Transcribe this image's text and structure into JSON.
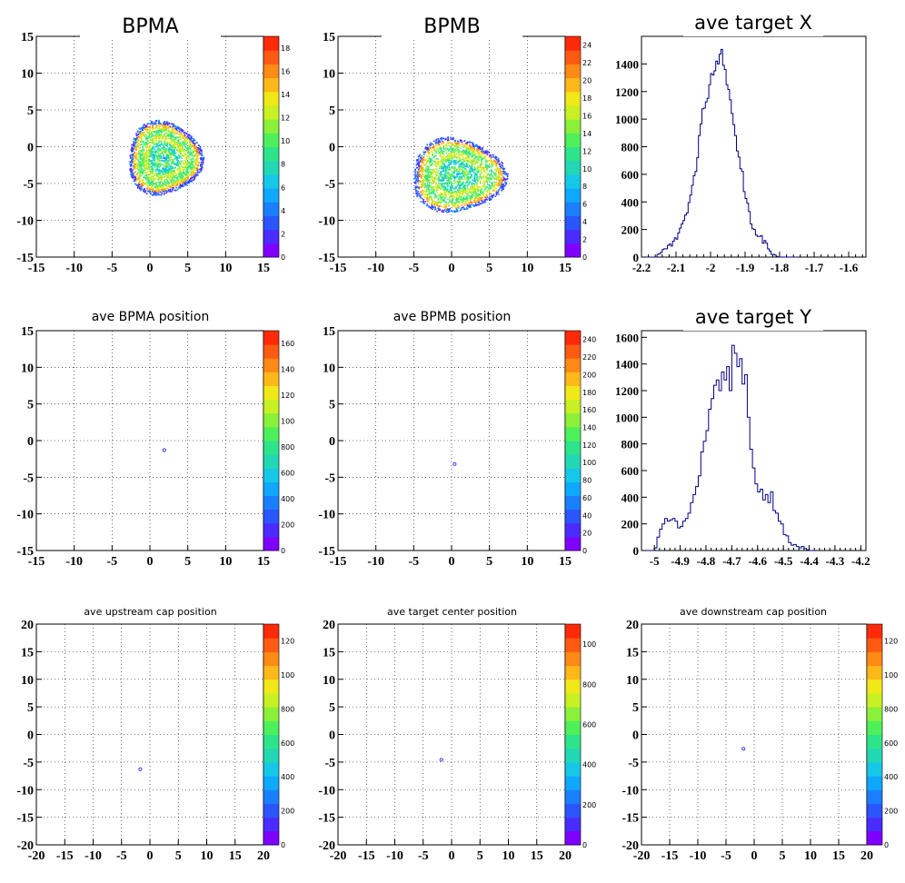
{
  "chart_data": [
    {
      "type": "heatmap",
      "title": "BPMA",
      "xlim": [
        -15,
        15
      ],
      "ylim": [
        -15,
        15
      ],
      "xticks": [
        "-15",
        "-10",
        "-5",
        "0",
        "5",
        "10",
        "15"
      ],
      "yticks": [
        "-15",
        "-10",
        "-5",
        "0",
        "5",
        "10",
        "15"
      ],
      "grid": true,
      "z_range": [
        0,
        18
      ],
      "palette_labels": [
        "0",
        "2",
        "4",
        "6",
        "8",
        "10",
        "12",
        "14",
        "16",
        "18"
      ],
      "distribution": {
        "kind": "ring",
        "center": [
          1.8,
          -1.5
        ],
        "radius_x": 4.9,
        "radius_y": 5.0
      }
    },
    {
      "type": "heatmap",
      "title": "BPMB",
      "xlim": [
        -15,
        15
      ],
      "ylim": [
        -15,
        15
      ],
      "xticks": [
        "-15",
        "-10",
        "-5",
        "0",
        "5",
        "10",
        "15"
      ],
      "yticks": [
        "-15",
        "-10",
        "-5",
        "0",
        "5",
        "10",
        "15"
      ],
      "grid": true,
      "z_range": [
        0,
        24
      ],
      "palette_labels": [
        "0",
        "2",
        "4",
        "6",
        "8",
        "10",
        "12",
        "14",
        "16",
        "18",
        "20",
        "22",
        "24"
      ],
      "distribution": {
        "kind": "ring",
        "center": [
          0.7,
          -3.8
        ],
        "radius_x": 6.2,
        "radius_y": 5.0
      }
    },
    {
      "type": "bar",
      "title": "ave target X",
      "xlim": [
        -2.2,
        -1.55
      ],
      "ylim": [
        0,
        1600
      ],
      "xticks": [
        "-2.2",
        "-2.1",
        "-2",
        "-1.9",
        "-1.8",
        "-1.7",
        "-1.6"
      ],
      "yticks": [
        "0",
        "200",
        "400",
        "600",
        "800",
        "1000",
        "1200",
        "1400"
      ],
      "grid": false,
      "bin_start": -2.2,
      "bin_width": 0.005,
      "values": [
        0,
        0,
        0,
        0,
        0,
        0,
        0,
        0,
        0,
        20,
        25,
        35,
        55,
        60,
        60,
        85,
        95,
        80,
        115,
        140,
        130,
        175,
        210,
        240,
        265,
        305,
        320,
        395,
        450,
        520,
        590,
        620,
        720,
        880,
        965,
        1075,
        1080,
        1125,
        1150,
        1250,
        1330,
        1320,
        1350,
        1420,
        1400,
        1470,
        1505,
        1390,
        1360,
        1250,
        1215,
        1140,
        1040,
        960,
        880,
        770,
        725,
        640,
        620,
        475,
        425,
        390,
        330,
        240,
        205,
        200,
        160,
        150,
        150,
        155,
        100,
        120,
        100,
        60,
        45,
        20,
        20,
        15,
        5,
        0,
        0,
        0,
        0,
        0,
        0,
        0,
        0,
        0,
        0,
        0
      ]
    },
    {
      "type": "heatmap",
      "title": "ave BPMA position",
      "xlim": [
        -15,
        15
      ],
      "ylim": [
        -15,
        15
      ],
      "xticks": [
        "-15",
        "-10",
        "-5",
        "0",
        "5",
        "10",
        "15"
      ],
      "yticks": [
        "-15",
        "-10",
        "-5",
        "0",
        "5",
        "10",
        "15"
      ],
      "grid": true,
      "z_range": [
        0,
        1800
      ],
      "palette_labels": [
        "0",
        "200",
        "400",
        "600",
        "800",
        "100",
        "120",
        "140",
        "160"
      ],
      "distribution": {
        "kind": "spot",
        "center": [
          1.9,
          -1.3
        ]
      }
    },
    {
      "type": "heatmap",
      "title": "ave BPMB position",
      "xlim": [
        -15,
        15
      ],
      "ylim": [
        -15,
        15
      ],
      "xticks": [
        "-15",
        "-10",
        "-5",
        "0",
        "5",
        "10",
        "15"
      ],
      "yticks": [
        "-15",
        "-10",
        "-5",
        "0",
        "5",
        "10",
        "15"
      ],
      "grid": true,
      "z_range": [
        0,
        250
      ],
      "palette_labels": [
        "0",
        "20",
        "40",
        "60",
        "80",
        "100",
        "120",
        "140",
        "160",
        "180",
        "200",
        "220",
        "240"
      ],
      "distribution": {
        "kind": "spot",
        "center": [
          0.4,
          -3.2
        ]
      }
    },
    {
      "type": "bar",
      "title": "ave target Y",
      "xlim": [
        -5.05,
        -4.18
      ],
      "ylim": [
        0,
        1650
      ],
      "xticks": [
        "-5",
        "-4.9",
        "-4.8",
        "-4.7",
        "-4.6",
        "-4.5",
        "-4.4",
        "-4.3",
        "-4.2"
      ],
      "yticks": [
        "0",
        "200",
        "400",
        "600",
        "800",
        "1000",
        "1200",
        "1400",
        "1600"
      ],
      "grid": false,
      "bin_start": -5.05,
      "bin_width": 0.01,
      "values": [
        0,
        0,
        0,
        0,
        0,
        20,
        100,
        160,
        200,
        240,
        220,
        230,
        240,
        220,
        170,
        180,
        220,
        240,
        280,
        360,
        420,
        480,
        560,
        740,
        820,
        900,
        1060,
        1140,
        1240,
        1280,
        1200,
        1340,
        1280,
        1380,
        1200,
        1540,
        1480,
        1380,
        1440,
        1250,
        1320,
        1000,
        760,
        620,
        500,
        440,
        460,
        380,
        420,
        360,
        440,
        300,
        280,
        220,
        200,
        120,
        110,
        60,
        40,
        45,
        30,
        20,
        30,
        15,
        5,
        0,
        0,
        0
      ]
    },
    {
      "type": "heatmap",
      "title": "ave upstream cap position",
      "xlim": [
        -20,
        20
      ],
      "ylim": [
        -20,
        20
      ],
      "xticks": [
        "-20",
        "-15",
        "-10",
        "-5",
        "0",
        "5",
        "10",
        "15",
        "20"
      ],
      "yticks": [
        "-20",
        "-15",
        "-10",
        "-5",
        "0",
        "5",
        "10",
        "15",
        "20"
      ],
      "grid": true,
      "z_range": [
        0,
        1250
      ],
      "palette_labels": [
        "0",
        "200",
        "400",
        "600",
        "800",
        "100",
        "120"
      ],
      "distribution": {
        "kind": "spot",
        "center": [
          -1.7,
          -6.3
        ]
      }
    },
    {
      "type": "heatmap",
      "title": "ave target center  position",
      "xlim": [
        -20,
        20
      ],
      "ylim": [
        -20,
        20
      ],
      "xticks": [
        "-20",
        "-15",
        "-10",
        "-5",
        "0",
        "5",
        "10",
        "15",
        "20"
      ],
      "yticks": [
        "-20",
        "-15",
        "-10",
        "-5",
        "0",
        "5",
        "10",
        "15",
        "20"
      ],
      "grid": true,
      "z_range": [
        0,
        1150
      ],
      "palette_labels": [
        "0",
        "200",
        "400",
        "600",
        "800",
        "100"
      ],
      "distribution": {
        "kind": "spot",
        "center": [
          -1.8,
          -4.6
        ]
      }
    },
    {
      "type": "heatmap",
      "title": "ave downstream cap position",
      "xlim": [
        -20,
        20
      ],
      "ylim": [
        -20,
        20
      ],
      "xticks": [
        "-20",
        "-15",
        "-10",
        "-5",
        "0",
        "5",
        "10",
        "15",
        "20"
      ],
      "yticks": [
        "-20",
        "-15",
        "-10",
        "-5",
        "0",
        "5",
        "10",
        "15",
        "20"
      ],
      "grid": true,
      "z_range": [
        0,
        1250
      ],
      "palette_labels": [
        "0",
        "200",
        "400",
        "600",
        "800",
        "100",
        "120"
      ],
      "distribution": {
        "kind": "spot",
        "center": [
          -1.9,
          -2.6
        ]
      }
    }
  ],
  "colors": {
    "histogram_line": "#000080",
    "palette": [
      "#7f00ff",
      "#4b2cff",
      "#2a55ff",
      "#1a7fff",
      "#0fa8ff",
      "#16c8e8",
      "#22d8b4",
      "#2ee48a",
      "#4ef05a",
      "#8af03a",
      "#c8f023",
      "#f0e818",
      "#ffb81a",
      "#ff8a16",
      "#ff5a12",
      "#ff2a0a"
    ]
  }
}
